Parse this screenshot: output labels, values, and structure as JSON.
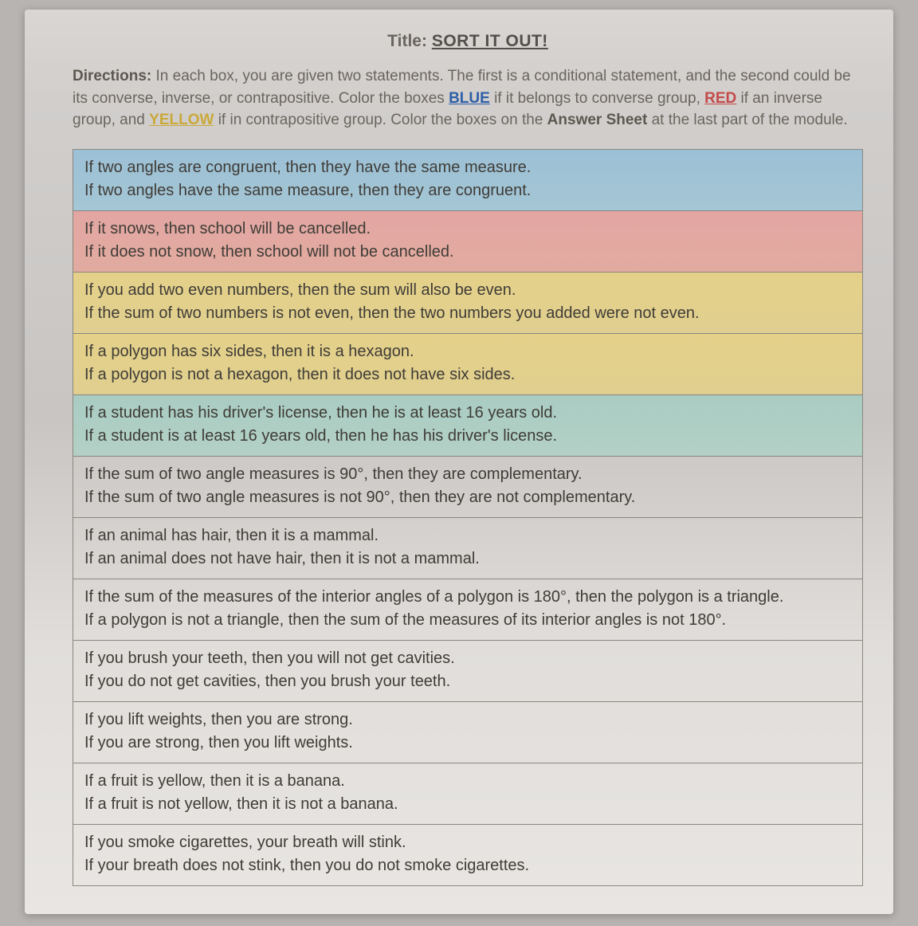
{
  "title_label": "Title:",
  "title_text": "SORT IT OUT!",
  "directions": {
    "lead": "Directions:",
    "part1": "In each box, you are given two statements. The first is a conditional statement, and the second could be its converse, inverse, or contrapositive. Color the boxes ",
    "kw_blue": "BLUE",
    "part2": " if it belongs to converse group, ",
    "kw_red": "RED",
    "part3": " if an inverse group, and ",
    "kw_yellow": "YELLOW",
    "part4": " if in contrapositive group. Color the boxes on the ",
    "bold_answer": "Answer Sheet",
    "part5": " at the last part of the module."
  },
  "fill_colors": {
    "blue": "#9cc0d5",
    "red": "#e3a6a2",
    "yellow": "#e4d088",
    "teal": "#a9ccc2",
    "none": "transparent"
  },
  "text_colors": {
    "body": "#3f3c37",
    "muted": "#6a655e",
    "kw_blue": "#2e5fa8",
    "kw_red": "#c44a4a",
    "kw_yellow": "#caa93a"
  },
  "border_color": "#8a8680",
  "font_size_box": 20,
  "boxes": [
    {
      "fill": "blue",
      "line1": "If two angles are congruent, then they have the same measure.",
      "line2": "If two angles have the same measure, then they are congruent."
    },
    {
      "fill": "red",
      "line1": "If it snows, then school will be cancelled.",
      "line2": "If it does not snow, then school will not be cancelled."
    },
    {
      "fill": "yellow",
      "line1": "If you add two even numbers, then the sum will also be even.",
      "line2": "If the sum of two numbers is not even, then the two numbers you added were not even."
    },
    {
      "fill": "yellow",
      "line1": "If a polygon has six sides, then it is a hexagon.",
      "line2": "If a polygon is not a hexagon, then it does not have six sides."
    },
    {
      "fill": "teal",
      "line1": "If a student has his driver's license, then he is at least 16 years old.",
      "line2": "If a student is at least 16 years old, then he has his driver's license."
    },
    {
      "fill": "none",
      "line1": "If the sum of two angle measures is 90°, then they are complementary.",
      "line2": "If the sum of two angle measures is not 90°, then they are not complementary."
    },
    {
      "fill": "none",
      "line1": "If an animal has hair, then it is a mammal.",
      "line2": "If an animal does not have hair, then it is not a mammal."
    },
    {
      "fill": "none",
      "line1": "If the sum of the measures of the interior angles of a polygon is 180°, then the polygon is a triangle.",
      "line2": "If a polygon is not a triangle, then the sum of the measures of its interior angles is not 180°."
    },
    {
      "fill": "none",
      "line1": "If you brush your teeth, then you will not get cavities.",
      "line2": "If you do not get cavities, then you brush your teeth."
    },
    {
      "fill": "none",
      "line1": "If you lift weights, then you are strong.",
      "line2": "If you are strong, then you lift weights."
    },
    {
      "fill": "none",
      "line1": "If a fruit is yellow, then it is a banana.",
      "line2": "If a fruit is not yellow, then it is not a banana."
    },
    {
      "fill": "none",
      "line1": "If you smoke cigarettes, your breath will stink.",
      "line2": "If your breath does not stink, then you do not smoke cigarettes."
    }
  ]
}
